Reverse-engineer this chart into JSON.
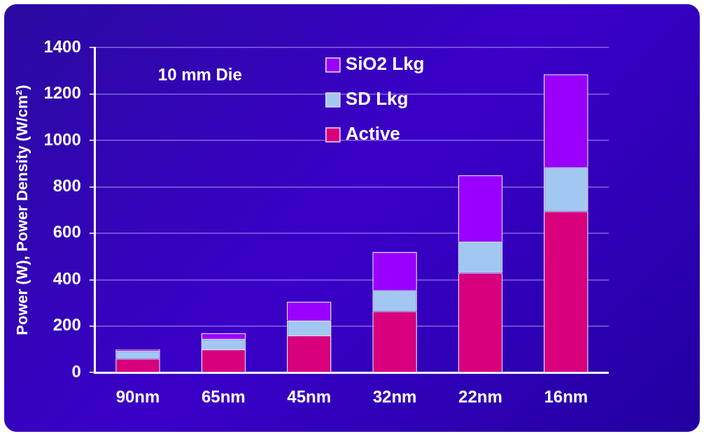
{
  "chart_data": {
    "type": "bar",
    "stacked": true,
    "ylabel": "Power (W), Power Density (W/cm²)",
    "annotations": [
      "10 mm Die"
    ],
    "categories": [
      "90nm",
      "65nm",
      "45nm",
      "32nm",
      "22nm",
      "16nm"
    ],
    "series": [
      {
        "name": "Active",
        "color": "#d8007c",
        "values": [
          60,
          100,
          160,
          265,
          430,
          695
        ]
      },
      {
        "name": "SD Lkg",
        "color": "#a2c8f2",
        "values": [
          35,
          45,
          65,
          90,
          135,
          190
        ]
      },
      {
        "name": "SiO2 Lkg",
        "color": "#9a00ff",
        "values": [
          5,
          25,
          80,
          165,
          285,
          400
        ]
      }
    ],
    "ylim": [
      0,
      1400
    ],
    "yticks": [
      0,
      200,
      400,
      600,
      800,
      1000,
      1200,
      1400
    ],
    "grid": "y",
    "legend": "top"
  }
}
